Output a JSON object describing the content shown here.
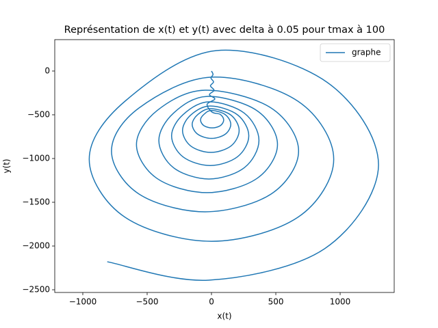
{
  "chart_data": {
    "type": "line",
    "title": "Représentation de x(t) et y(t) avec delta à 0.05 pour tmax à 100",
    "x_label": "x(t)",
    "y_label": "y(t)",
    "legend_position": "upper right",
    "xlim": [
      -1218,
      1420
    ],
    "ylim": [
      -2531,
      359
    ],
    "xticks": [
      {
        "value": -1000,
        "label": "−1000"
      },
      {
        "value": -500,
        "label": "−500"
      },
      0,
      500,
      1000
    ],
    "yticks": [
      {
        "value": -2500,
        "label": "−2500"
      },
      {
        "value": -2000,
        "label": "−2000"
      },
      {
        "value": -1500,
        "label": "−1500"
      },
      {
        "value": -1000,
        "label": "−1000"
      },
      {
        "value": -500,
        "label": "−500"
      },
      0
    ],
    "series": [
      {
        "name": "graphe",
        "color": "#1f77b4",
        "x": [
          0,
          12,
          -4,
          16,
          -8,
          20,
          -16,
          26,
          -34,
          5,
          69,
          95,
          69,
          5,
          -59,
          -85,
          -59,
          0,
          106,
          150,
          106,
          0,
          -106,
          -150,
          -106,
          -5,
          151,
          215,
          151,
          -5,
          -161,
          -225,
          -161,
          -10,
          202,
          290,
          202,
          -10,
          -222,
          -310,
          -222,
          -20,
          255,
          369,
          255,
          -20,
          -295,
          -409,
          -295,
          -35,
          352,
          513,
          352,
          -35,
          -422,
          -583,
          -422,
          -50,
          464,
          677,
          464,
          -50,
          -564,
          -777,
          -564,
          0,
          672,
          950,
          672,
          0,
          -672,
          -950,
          -672,
          40,
          900,
          1298,
          880,
          -20,
          -810
        ],
        "y": [
          0,
          -40,
          -80,
          -125,
          -170,
          -220,
          -270,
          -320,
          -380,
          -470,
          -496,
          -560,
          -624,
          -650,
          -624,
          -560,
          -496,
          -450,
          -497,
          -610,
          -723,
          -770,
          -723,
          -610,
          -497,
          -430,
          -503,
          -680,
          -857,
          -930,
          -857,
          -680,
          -503,
          -400,
          -500,
          -740,
          -980,
          -1080,
          -980,
          -740,
          -500,
          -352,
          -481,
          -793,
          -1105,
          -1234,
          -1105,
          -793,
          -481,
          -290,
          -451,
          -840,
          -1229,
          -1390,
          -1229,
          -840,
          -451,
          -219,
          -423,
          -914,
          -1405,
          -1609,
          -1405,
          -914,
          -423,
          -70,
          -345,
          -1008,
          -1671,
          -1946,
          -1671,
          -1008,
          -345,
          234,
          -130,
          -1078,
          -2030,
          -2390,
          -2180
        ]
      }
    ]
  }
}
